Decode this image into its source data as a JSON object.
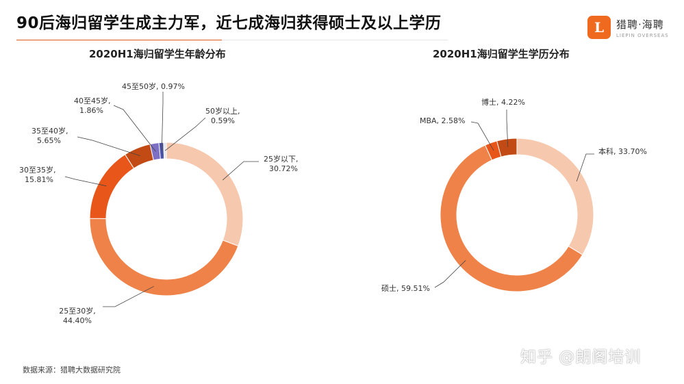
{
  "headline": "90后海归留学生成主力军，近七成海归获得硕士及以上学历",
  "logo": {
    "name": "猎聘·海聘",
    "sub": "LIEPIN OVERSEAS"
  },
  "source": "数据来源：猎聘大数据研究院",
  "watermark": "知乎 @朗阁培训",
  "colors": {
    "accent": "#e05a1a"
  },
  "chart_data": [
    {
      "type": "pie",
      "donut": true,
      "title": "2020H1海归留学生年龄分布",
      "series": [
        {
          "name": "25岁以下",
          "value": 30.72,
          "label": "25岁以下,",
          "pct": "30.72%",
          "color": "#f6c8ae"
        },
        {
          "name": "25至30岁",
          "value": 44.4,
          "label": "25至30岁,",
          "pct": "44.40%",
          "color": "#ee8248"
        },
        {
          "name": "30至35岁",
          "value": 15.81,
          "label": "30至35岁,",
          "pct": "15.81%",
          "color": "#e8561a"
        },
        {
          "name": "35至40岁",
          "value": 5.65,
          "label": "35至40岁,",
          "pct": "5.65%",
          "color": "#c24a14"
        },
        {
          "name": "40至45岁",
          "value": 1.86,
          "label": "40至45岁,",
          "pct": "1.86%",
          "color": "#7c6fc4"
        },
        {
          "name": "45至50岁",
          "value": 0.97,
          "label": "45至50岁, 0.97%",
          "pct": "",
          "color": "#4d55a8"
        },
        {
          "name": "50岁以上",
          "value": 0.59,
          "label": "50岁以上,",
          "pct": "0.59%",
          "color": "#e6e6ee"
        }
      ]
    },
    {
      "type": "pie",
      "donut": true,
      "title": "2020H1海归留学生学历分布",
      "series": [
        {
          "name": "本科",
          "value": 33.7,
          "label": "本科, 33.70%",
          "pct": "",
          "color": "#f6c8ae"
        },
        {
          "name": "硕士",
          "value": 59.51,
          "label": "硕士, 59.51%",
          "pct": "",
          "color": "#ee8248"
        },
        {
          "name": "MBA",
          "value": 2.58,
          "label": "MBA, 2.58%",
          "pct": "",
          "color": "#e8561a"
        },
        {
          "name": "博士",
          "value": 4.22,
          "label": "博士, 4.22%",
          "pct": "",
          "color": "#c24a14"
        }
      ]
    }
  ]
}
